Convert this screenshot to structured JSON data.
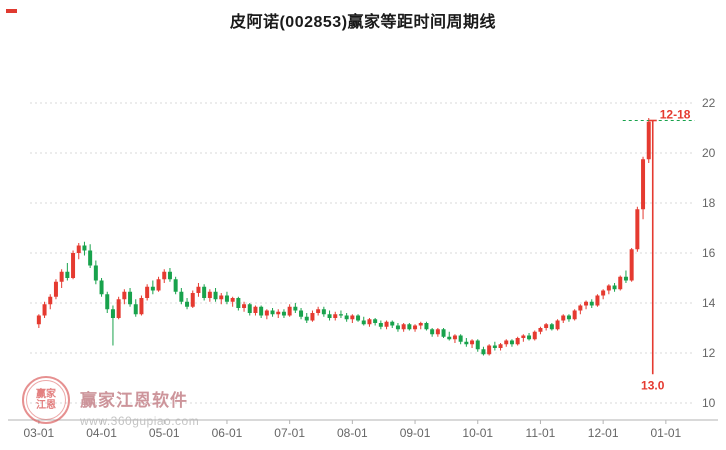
{
  "header": {
    "title": "皮阿诺(002853)赢家等距时间周期线"
  },
  "watermark": {
    "brand": "赢家江恩软件",
    "url": "www.360gupiao.com",
    "seal": "赢家江恩"
  },
  "chart_data": {
    "type": "candlestick",
    "title": "皮阿诺(002853)赢家等距时间周期线",
    "symbol": "002853",
    "name": "皮阿诺",
    "y_ticks": [
      10,
      12,
      14,
      16,
      18,
      20,
      22
    ],
    "ylim": [
      9.3,
      22.7
    ],
    "x_ticks": [
      "03-01",
      "04-01",
      "05-01",
      "06-01",
      "07-01",
      "08-01",
      "09-01",
      "10-01",
      "11-01",
      "12-01",
      "01-01"
    ],
    "candles_per_month": 11,
    "up_color": "#e53a30",
    "down_color": "#18a24c",
    "grid_color": "#dadada",
    "axis_color": "#b3b3b3",
    "tick_label_color": "#666666",
    "grid_on": true,
    "legend_position": "none",
    "candles": [
      [
        13.15,
        13.55,
        13.0,
        13.5
      ],
      [
        13.5,
        14.05,
        13.4,
        13.95
      ],
      [
        13.95,
        14.35,
        13.75,
        14.25
      ],
      [
        14.25,
        14.95,
        14.15,
        14.85
      ],
      [
        14.85,
        15.35,
        14.6,
        15.25
      ],
      [
        15.25,
        15.6,
        14.9,
        15.0
      ],
      [
        15.0,
        16.1,
        14.95,
        16.0
      ],
      [
        16.0,
        16.4,
        15.75,
        16.3
      ],
      [
        16.3,
        16.45,
        15.9,
        16.1
      ],
      [
        16.1,
        16.35,
        15.4,
        15.5
      ],
      [
        15.5,
        15.7,
        14.75,
        14.9
      ],
      [
        14.9,
        15.0,
        14.25,
        14.35
      ],
      [
        14.35,
        14.45,
        13.6,
        13.75
      ],
      [
        13.75,
        13.9,
        12.3,
        13.4
      ],
      [
        13.4,
        14.25,
        13.35,
        14.15
      ],
      [
        14.15,
        14.55,
        13.95,
        14.45
      ],
      [
        14.45,
        14.6,
        13.85,
        13.95
      ],
      [
        13.95,
        14.15,
        13.45,
        13.55
      ],
      [
        13.55,
        14.3,
        13.5,
        14.2
      ],
      [
        14.2,
        14.75,
        14.1,
        14.65
      ],
      [
        14.65,
        14.9,
        14.35,
        14.5
      ],
      [
        14.5,
        15.05,
        14.45,
        14.95
      ],
      [
        14.95,
        15.35,
        14.8,
        15.25
      ],
      [
        15.25,
        15.4,
        14.85,
        14.95
      ],
      [
        14.95,
        15.05,
        14.35,
        14.45
      ],
      [
        14.45,
        14.6,
        13.95,
        14.05
      ],
      [
        14.05,
        14.2,
        13.75,
        13.85
      ],
      [
        13.85,
        14.5,
        13.8,
        14.4
      ],
      [
        14.4,
        14.8,
        14.25,
        14.65
      ],
      [
        14.65,
        14.75,
        14.1,
        14.2
      ],
      [
        14.2,
        14.55,
        14.05,
        14.45
      ],
      [
        14.45,
        14.6,
        14.05,
        14.15
      ],
      [
        14.15,
        14.4,
        13.95,
        14.3
      ],
      [
        14.3,
        14.45,
        13.95,
        14.05
      ],
      [
        14.05,
        14.25,
        13.85,
        14.2
      ],
      [
        14.2,
        14.25,
        13.7,
        13.8
      ],
      [
        13.8,
        14.05,
        13.65,
        13.95
      ],
      [
        13.95,
        14.0,
        13.5,
        13.6
      ],
      [
        13.6,
        13.9,
        13.5,
        13.85
      ],
      [
        13.85,
        13.9,
        13.4,
        13.5
      ],
      [
        13.5,
        13.75,
        13.35,
        13.7
      ],
      [
        13.7,
        13.8,
        13.45,
        13.55
      ],
      [
        13.55,
        13.75,
        13.4,
        13.65
      ],
      [
        13.65,
        13.75,
        13.4,
        13.5
      ],
      [
        13.5,
        13.95,
        13.45,
        13.85
      ],
      [
        13.85,
        14.0,
        13.6,
        13.7
      ],
      [
        13.7,
        13.8,
        13.35,
        13.45
      ],
      [
        13.45,
        13.6,
        13.2,
        13.3
      ],
      [
        13.3,
        13.7,
        13.25,
        13.6
      ],
      [
        13.6,
        13.85,
        13.5,
        13.75
      ],
      [
        13.75,
        13.85,
        13.45,
        13.55
      ],
      [
        13.55,
        13.7,
        13.3,
        13.4
      ],
      [
        13.4,
        13.65,
        13.3,
        13.55
      ],
      [
        13.55,
        13.7,
        13.4,
        13.5
      ],
      [
        13.5,
        13.6,
        13.25,
        13.35
      ],
      [
        13.35,
        13.55,
        13.2,
        13.5
      ],
      [
        13.5,
        13.55,
        13.25,
        13.3
      ],
      [
        13.3,
        13.45,
        13.1,
        13.15
      ],
      [
        13.15,
        13.4,
        13.05,
        13.35
      ],
      [
        13.35,
        13.4,
        13.1,
        13.2
      ],
      [
        13.2,
        13.3,
        12.95,
        13.05
      ],
      [
        13.05,
        13.3,
        12.95,
        13.25
      ],
      [
        13.25,
        13.3,
        13.0,
        13.1
      ],
      [
        13.1,
        13.2,
        12.85,
        12.95
      ],
      [
        12.95,
        13.2,
        12.85,
        13.15
      ],
      [
        13.15,
        13.2,
        12.9,
        12.95
      ],
      [
        12.95,
        13.15,
        12.85,
        13.1
      ],
      [
        13.1,
        13.25,
        12.95,
        13.2
      ],
      [
        13.2,
        13.25,
        12.9,
        12.95
      ],
      [
        12.95,
        13.0,
        12.65,
        12.75
      ],
      [
        12.75,
        13.0,
        12.65,
        12.95
      ],
      [
        12.95,
        13.0,
        12.6,
        12.65
      ],
      [
        12.65,
        12.85,
        12.5,
        12.55
      ],
      [
        12.55,
        12.75,
        12.4,
        12.7
      ],
      [
        12.7,
        12.75,
        12.35,
        12.45
      ],
      [
        12.45,
        12.6,
        12.25,
        12.35
      ],
      [
        12.35,
        12.55,
        12.2,
        12.5
      ],
      [
        12.5,
        12.55,
        12.05,
        12.15
      ],
      [
        12.15,
        12.25,
        11.9,
        11.95
      ],
      [
        11.95,
        12.35,
        11.9,
        12.3
      ],
      [
        12.3,
        12.45,
        12.1,
        12.2
      ],
      [
        12.2,
        12.4,
        12.1,
        12.35
      ],
      [
        12.35,
        12.55,
        12.25,
        12.5
      ],
      [
        12.5,
        12.55,
        12.25,
        12.35
      ],
      [
        12.35,
        12.65,
        12.3,
        12.6
      ],
      [
        12.6,
        12.75,
        12.45,
        12.7
      ],
      [
        12.7,
        12.8,
        12.5,
        12.55
      ],
      [
        12.55,
        12.9,
        12.5,
        12.85
      ],
      [
        12.85,
        13.05,
        12.75,
        13.0
      ],
      [
        13.0,
        13.2,
        12.9,
        13.15
      ],
      [
        13.15,
        13.2,
        12.9,
        12.95
      ],
      [
        12.95,
        13.35,
        12.9,
        13.3
      ],
      [
        13.3,
        13.55,
        13.2,
        13.5
      ],
      [
        13.5,
        13.55,
        13.25,
        13.35
      ],
      [
        13.35,
        13.75,
        13.3,
        13.7
      ],
      [
        13.7,
        13.95,
        13.55,
        13.9
      ],
      [
        13.9,
        14.1,
        13.75,
        14.05
      ],
      [
        14.05,
        14.15,
        13.8,
        13.9
      ],
      [
        13.9,
        14.35,
        13.85,
        14.3
      ],
      [
        14.3,
        14.55,
        14.15,
        14.5
      ],
      [
        14.5,
        14.75,
        14.35,
        14.7
      ],
      [
        14.7,
        14.8,
        14.45,
        14.55
      ],
      [
        14.55,
        15.1,
        14.5,
        15.05
      ],
      [
        15.05,
        15.3,
        14.8,
        14.9
      ],
      [
        14.9,
        16.2,
        14.85,
        16.15
      ],
      [
        16.15,
        17.85,
        16.05,
        17.75
      ],
      [
        17.75,
        19.85,
        17.35,
        19.75
      ],
      [
        19.75,
        21.4,
        19.6,
        21.25
      ]
    ],
    "cycle_marker": {
      "label_top": "12-18",
      "label_bottom": "13.0",
      "x_index": 107.7,
      "line_top": 21.3,
      "line_bottom": 11.15,
      "line_color": "#e53a30",
      "dotted_level": 21.3,
      "dotted_color": "#18a24c"
    }
  }
}
